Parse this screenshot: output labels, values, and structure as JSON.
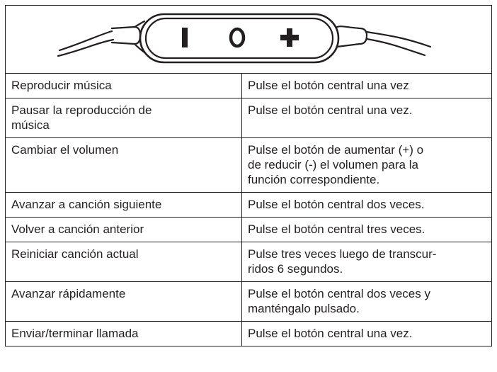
{
  "table": {
    "rows": [
      [
        [
          "Reproducir música"
        ],
        [
          "Pulse el botón central una vez"
        ]
      ],
      [
        [
          "Pausar la reproducción de",
          "música"
        ],
        [
          "Pulse el botón central una vez."
        ]
      ],
      [
        [
          "Cambiar el volumen"
        ],
        [
          "Pulse el botón de aumentar (+) o",
          "de reducir (-) el volumen para la",
          "función correspondiente."
        ]
      ],
      [
        [
          "Avanzar a canción siguiente"
        ],
        [
          "Pulse el botón central dos veces."
        ]
      ],
      [
        [
          "Volver a canción anterior"
        ],
        [
          "Pulse el botón central tres veces."
        ]
      ],
      [
        [
          "Reiniciar canción actual"
        ],
        [
          "Pulse tres veces luego de transcur-",
          "ridos 6 segundos."
        ]
      ],
      [
        [
          "Avanzar rápidamente"
        ],
        [
          "Pulse el botón central dos veces y",
          "manténgalo pulsado."
        ]
      ],
      [
        [
          "Enviar/terminar llamada"
        ],
        [
          "Pulse el botón central una vez."
        ]
      ]
    ]
  }
}
